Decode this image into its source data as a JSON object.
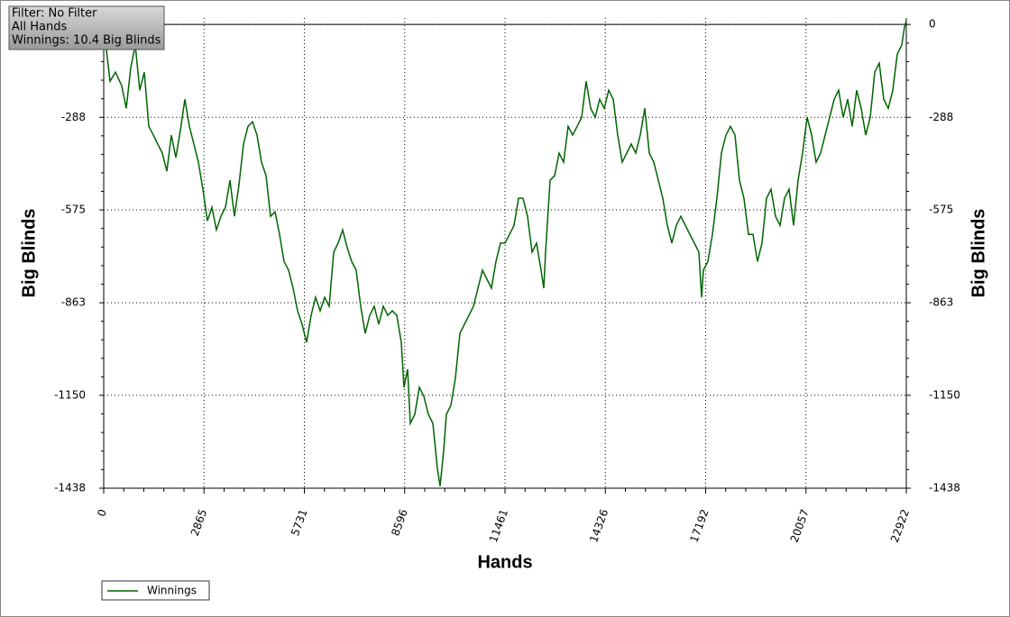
{
  "chart_data": {
    "type": "line",
    "info": [
      "Filter: No Filter",
      "All Hands",
      "Winnings: 10.4 Big Blinds"
    ],
    "x_label": "Hands",
    "y_label": "Big Blinds",
    "xlim": [
      0,
      22922
    ],
    "xticks": [
      0,
      2865,
      5731,
      8596,
      11461,
      14326,
      17192,
      20057,
      22922
    ],
    "ylim": [
      -1438,
      20
    ],
    "yticks": [
      0,
      -288,
      -575,
      -863,
      -1150,
      -1438
    ],
    "grid": true,
    "legend": "bottom-left",
    "series": [
      {
        "name": "Winnings",
        "color": "#006400",
        "x": [
          0,
          77,
          180,
          335,
          515,
          644,
          773,
          902,
          1030,
          1159,
          1288,
          1417,
          1545,
          1674,
          1803,
          1932,
          2060,
          2189,
          2318,
          2447,
          2575,
          2704,
          2833,
          2962,
          3091,
          3219,
          3348,
          3477,
          3606,
          3734,
          3863,
          3992,
          4121,
          4250,
          4378,
          4507,
          4636,
          4765,
          4893,
          5022,
          5151,
          5280,
          5409,
          5537,
          5666,
          5795,
          5924,
          6052,
          6181,
          6310,
          6439,
          6568,
          6696,
          6825,
          6954,
          7083,
          7211,
          7340,
          7469,
          7598,
          7727,
          7855,
          7984,
          8113,
          8242,
          8370,
          8499,
          8576,
          8679,
          8757,
          8885,
          9014,
          9143,
          9272,
          9401,
          9529,
          9607,
          9710,
          9787,
          9916,
          10044,
          10173,
          10302,
          10431,
          10560,
          10688,
          10817,
          10946,
          11075,
          11203,
          11332,
          11461,
          11590,
          11719,
          11847,
          11976,
          12105,
          12234,
          12362,
          12491,
          12568,
          12620,
          12749,
          12878,
          13007,
          13135,
          13264,
          13393,
          13521,
          13650,
          13779,
          13908,
          14036,
          14165,
          14294,
          14423,
          14552,
          14680,
          14809,
          14938,
          15067,
          15195,
          15324,
          15453,
          15582,
          15711,
          15839,
          15968,
          16097,
          16226,
          16354,
          16483,
          16612,
          16741,
          16870,
          16998,
          17076,
          17127,
          17256,
          17385,
          17513,
          17642,
          17771,
          17900,
          18029,
          18157,
          18286,
          18415,
          18544,
          18672,
          18801,
          18930,
          19059,
          19187,
          19316,
          19445,
          19574,
          19703,
          19831,
          19960,
          20089,
          20218,
          20346,
          20475,
          20604,
          20733,
          20862,
          20990,
          21119,
          21248,
          21377,
          21505,
          21634,
          21763,
          21892,
          22021,
          22149,
          22278,
          22407,
          22536,
          22664,
          22793,
          22870,
          22922
        ],
        "values": [
          0,
          -78,
          -176,
          -148,
          -190,
          -260,
          -134,
          -64,
          -204,
          -148,
          -316,
          -343,
          -371,
          -399,
          -455,
          -343,
          -413,
          -329,
          -232,
          -316,
          -371,
          -427,
          -511,
          -609,
          -567,
          -637,
          -595,
          -567,
          -483,
          -595,
          -497,
          -371,
          -316,
          -302,
          -343,
          -427,
          -469,
          -595,
          -581,
          -651,
          -735,
          -762,
          -818,
          -888,
          -930,
          -986,
          -902,
          -846,
          -888,
          -846,
          -874,
          -706,
          -678,
          -637,
          -692,
          -735,
          -762,
          -874,
          -958,
          -902,
          -874,
          -930,
          -874,
          -902,
          -888,
          -902,
          -986,
          -1125,
          -1069,
          -1237,
          -1209,
          -1125,
          -1153,
          -1209,
          -1237,
          -1376,
          -1432,
          -1321,
          -1209,
          -1181,
          -1097,
          -958,
          -930,
          -902,
          -874,
          -818,
          -762,
          -790,
          -818,
          -735,
          -678,
          -678,
          -651,
          -623,
          -539,
          -539,
          -595,
          -706,
          -678,
          -762,
          -818,
          -706,
          -483,
          -469,
          -399,
          -427,
          -316,
          -343,
          -316,
          -288,
          -176,
          -260,
          -288,
          -232,
          -260,
          -204,
          -232,
          -343,
          -427,
          -399,
          -371,
          -399,
          -343,
          -260,
          -399,
          -427,
          -483,
          -539,
          -623,
          -678,
          -623,
          -595,
          -623,
          -651,
          -678,
          -706,
          -846,
          -762,
          -735,
          -651,
          -539,
          -399,
          -343,
          -316,
          -343,
          -483,
          -539,
          -651,
          -651,
          -735,
          -678,
          -539,
          -511,
          -595,
          -623,
          -539,
          -511,
          -623,
          -483,
          -399,
          -288,
          -343,
          -427,
          -399,
          -343,
          -288,
          -232,
          -204,
          -288,
          -232,
          -316,
          -204,
          -260,
          -343,
          -288,
          -148,
          -120,
          -232,
          -260,
          -204,
          -92,
          -64,
          -8,
          10.4
        ]
      }
    ]
  }
}
